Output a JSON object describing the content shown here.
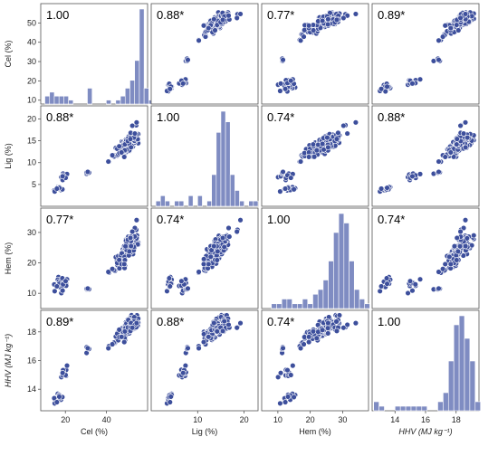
{
  "chart_data": {
    "type": "scatter",
    "title": "",
    "variables": [
      {
        "key": "cel",
        "label": "Cel (%)",
        "range": [
          8,
          60
        ],
        "ticks": [
          10,
          20,
          30,
          40,
          50
        ],
        "x_ticks": [
          20,
          40
        ]
      },
      {
        "key": "lig",
        "label": "Lig (%)",
        "range": [
          0,
          23
        ],
        "ticks": [
          5,
          10,
          15,
          20
        ],
        "x_ticks": [
          10,
          20
        ]
      },
      {
        "key": "hem",
        "label": "Hem (%)",
        "range": [
          5,
          38
        ],
        "ticks": [
          10,
          20,
          30
        ],
        "x_ticks": [
          10,
          20,
          30
        ]
      },
      {
        "key": "hhv",
        "label": "HHV (MJ kg⁻¹)",
        "range": [
          12.5,
          19.5
        ],
        "ticks": [
          14,
          16,
          18
        ],
        "x_ticks": [
          14,
          16,
          18
        ]
      }
    ],
    "correlation_matrix": [
      [
        "1.00",
        "0.88*",
        "0.77*",
        "0.89*"
      ],
      [
        "0.88*",
        "1.00",
        "0.74*",
        "0.88*"
      ],
      [
        "0.77*",
        "0.74*",
        "1.00",
        "0.74*"
      ],
      [
        "0.89*",
        "0.88*",
        "0.74*",
        "1.00"
      ]
    ],
    "histograms": {
      "cel": {
        "bin_start": 10,
        "bin_width": 2.3,
        "counts": [
          2,
          3,
          2,
          2,
          2,
          1,
          0,
          0,
          0,
          4,
          0,
          0,
          0,
          1,
          0,
          1,
          2,
          4,
          6,
          11,
          24,
          4,
          1
        ]
      },
      "lig": {
        "bin_start": 1,
        "bin_width": 1,
        "counts": [
          1,
          2,
          1,
          0,
          1,
          1,
          0,
          2,
          0,
          2,
          0,
          1,
          6,
          14,
          18,
          16,
          6,
          3,
          1,
          0,
          1,
          1
        ]
      },
      "hem": {
        "bin_start": 8,
        "bin_width": 1.6,
        "counts": [
          1,
          1,
          2,
          2,
          1,
          1,
          2,
          1,
          3,
          4,
          6,
          10,
          16,
          20,
          18,
          10,
          4,
          2,
          1
        ]
      },
      "hhv": {
        "bin_start": 12.6,
        "bin_width": 0.35,
        "counts": [
          2,
          1,
          0,
          0,
          1,
          1,
          1,
          1,
          1,
          1,
          0,
          0,
          2,
          4,
          11,
          19,
          21,
          16,
          11,
          2
        ]
      }
    },
    "clusters": [
      {
        "n": 12,
        "cel": [
          13,
          20
        ],
        "lig": [
          2.5,
          5
        ],
        "hem": [
          9,
          17
        ],
        "hhv": [
          12.8,
          14
        ]
      },
      {
        "n": 10,
        "cel": [
          17,
          22
        ],
        "lig": [
          5,
          9
        ],
        "hem": [
          9,
          16
        ],
        "hhv": [
          14.5,
          15.8
        ]
      },
      {
        "n": 4,
        "cel": [
          28,
          33
        ],
        "lig": [
          7,
          8.5
        ],
        "hem": [
          11,
          12
        ],
        "hhv": [
          16.4,
          17.3
        ]
      },
      {
        "n": 5,
        "cel": [
          38,
          46
        ],
        "lig": [
          9,
          13
        ],
        "hem": [
          16,
          19
        ],
        "hhv": [
          16.6,
          17.6
        ]
      },
      {
        "n": 120,
        "cel": [
          44,
          56
        ],
        "lig": [
          11,
          17
        ],
        "hem": [
          18,
          30
        ],
        "hhv": [
          17.2,
          19.2
        ]
      },
      {
        "n": 6,
        "cel": [
          50,
          57
        ],
        "lig": [
          15,
          21
        ],
        "hem": [
          28,
          36
        ],
        "hhv": [
          18,
          19
        ]
      }
    ],
    "colors": {
      "point": "#3d4f9c",
      "point_stroke": "#ffffff",
      "bar": "#7f8cc2",
      "bar_stroke": "#ffffff"
    }
  }
}
